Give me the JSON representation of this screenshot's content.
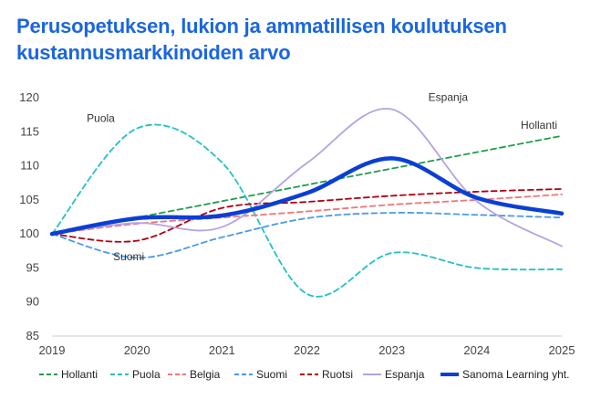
{
  "title": "Perusopetuksen, lukion ja ammatillisen koulutuksen kustannusmarkkinoiden arvo",
  "chart_data": {
    "type": "line",
    "title": "Perusopetuksen, lukion ja ammatillisen koulutuksen kustannusmarkkinoiden arvo",
    "xlabel": "",
    "ylabel": "",
    "x": [
      2019,
      2020,
      2021,
      2022,
      2023,
      2024,
      2025
    ],
    "y_ticks": [
      85,
      90,
      95,
      100,
      105,
      110,
      115,
      120
    ],
    "ylim": [
      85,
      120
    ],
    "grid": false,
    "legend_position": "bottom",
    "series": [
      {
        "name": "Hollanti",
        "color": "#1e9e4a",
        "dash": "dashed",
        "values": [
          100,
          102.4,
          104.8,
          107.2,
          109.6,
          112.0,
          114.4
        ]
      },
      {
        "name": "Puola",
        "color": "#22c1c3",
        "dash": "dashed",
        "values": [
          100,
          115.5,
          110.5,
          91.2,
          97.2,
          95.0,
          94.8
        ]
      },
      {
        "name": "Belgia",
        "color": "#ee7777",
        "dash": "dashed",
        "values": [
          100,
          101.5,
          102.4,
          103.3,
          104.3,
          105.0,
          105.8
        ]
      },
      {
        "name": "Suomi",
        "color": "#4a9ae8",
        "dash": "dashed",
        "values": [
          100,
          96.5,
          99.5,
          102.3,
          103.1,
          102.8,
          102.4
        ]
      },
      {
        "name": "Ruotsi",
        "color": "#b00010",
        "dash": "dashed",
        "values": [
          100,
          99.0,
          103.8,
          104.7,
          105.6,
          106.2,
          106.6
        ]
      },
      {
        "name": "Espanja",
        "color": "#b4a3e0",
        "dash": "solid",
        "values": [
          100,
          101.6,
          101.0,
          110.4,
          118.3,
          104.8,
          98.2
        ]
      },
      {
        "name": "Sanoma Learning yht.",
        "color": "#0a3fd6",
        "dash": "solid",
        "width": "thick",
        "values": [
          100,
          102.3,
          102.7,
          106.0,
          111.1,
          105.3,
          103.0
        ]
      }
    ],
    "annotations": [
      {
        "text": "Puola",
        "series": "Puola"
      },
      {
        "text": "Suomi",
        "series": "Suomi"
      },
      {
        "text": "Espanja",
        "series": "Espanja"
      },
      {
        "text": "Hollanti",
        "series": "Hollanti"
      }
    ]
  }
}
